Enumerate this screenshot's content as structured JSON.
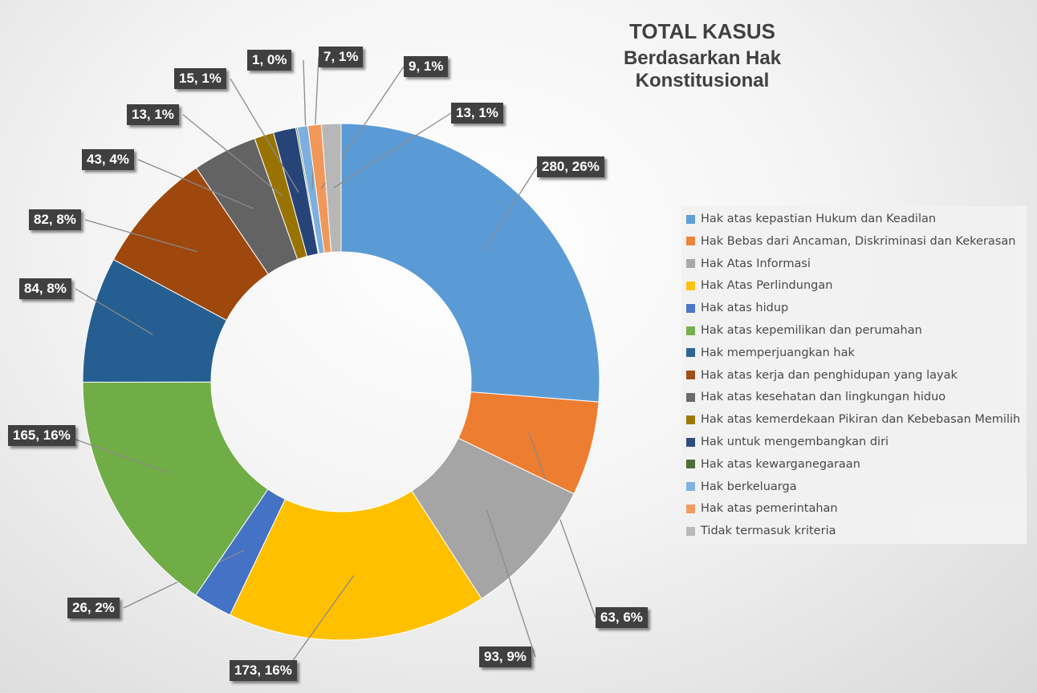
{
  "chart_data": {
    "type": "pie",
    "donut": true,
    "title": "TOTAL KASUS",
    "subtitle": "Berdasarkan Hak Konstitusional",
    "legend_position": "right",
    "categories": [
      "Hak atas kepastian Hukum dan Keadilan",
      "Hak Bebas dari Ancaman, Diskriminasi dan Kekerasan",
      "Hak Atas Informasi",
      "Hak Atas Perlindungan",
      "Hak atas hidup",
      "Hak atas kepemilikan dan perumahan",
      "Hak memperjuangkan hak",
      "Hak atas kerja dan penghidupan yang layak",
      "Hak atas kesehatan dan lingkungan hiduo",
      "Hak atas kemerdekaan Pikiran dan Kebebasan Memilih",
      "Hak untuk mengembangkan diri",
      "Hak atas kewarganegaraan",
      "Hak berkeluarga",
      "Hak atas pemerintahan",
      "Tidak termasuk kriteria"
    ],
    "values": [
      280,
      63,
      93,
      173,
      26,
      165,
      84,
      82,
      43,
      13,
      15,
      1,
      7,
      9,
      13
    ],
    "data_labels": [
      "280, 26%",
      "63, 6%",
      "93, 9%",
      "173, 16%",
      "26, 2%",
      "165, 16%",
      "84, 8%",
      "82, 8%",
      "43, 4%",
      "13, 1%",
      "15, 1%",
      "1, 0%",
      "7, 1%",
      "9, 1%",
      "13, 1%"
    ],
    "colors": [
      "#5b9bd5",
      "#ed7d31",
      "#a5a5a5",
      "#ffc000",
      "#4472c4",
      "#70ad47",
      "#255e91",
      "#9e480e",
      "#636363",
      "#997300",
      "#264478",
      "#43682b",
      "#7cafdd",
      "#f1975a",
      "#b7b7b7"
    ]
  }
}
